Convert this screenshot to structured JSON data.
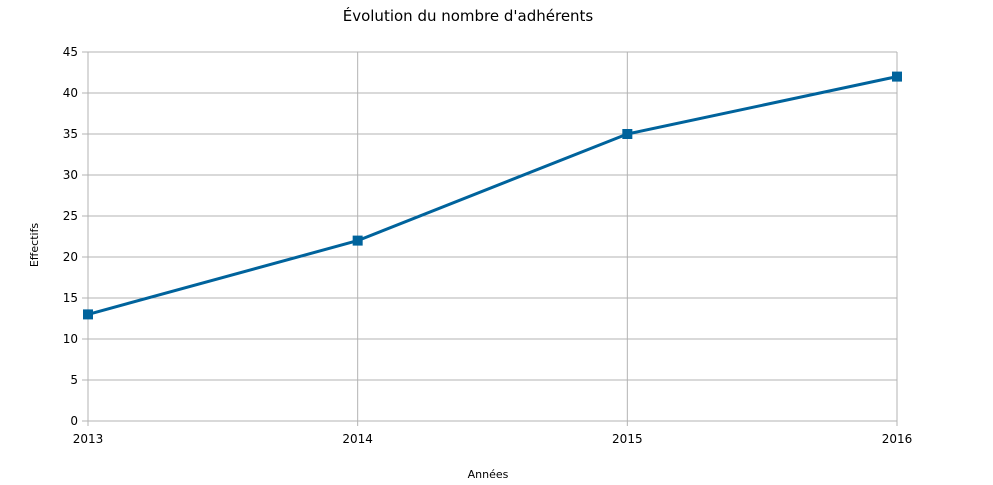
{
  "chart_data": {
    "type": "line",
    "title": "Évolution du nombre d'adhérents",
    "xlabel": "Années",
    "ylabel": "Effectifs",
    "categories": [
      "2013",
      "2014",
      "2015",
      "2016"
    ],
    "series": [
      {
        "values": [
          13,
          22,
          35,
          42
        ]
      }
    ],
    "ylim": [
      0,
      45
    ],
    "y_ticks": [
      0,
      5,
      10,
      15,
      20,
      25,
      30,
      35,
      40,
      45
    ],
    "grid": true,
    "legend": "none",
    "marker": "square",
    "series_color": "#00639c",
    "grid_color": "#b3b3b3"
  }
}
